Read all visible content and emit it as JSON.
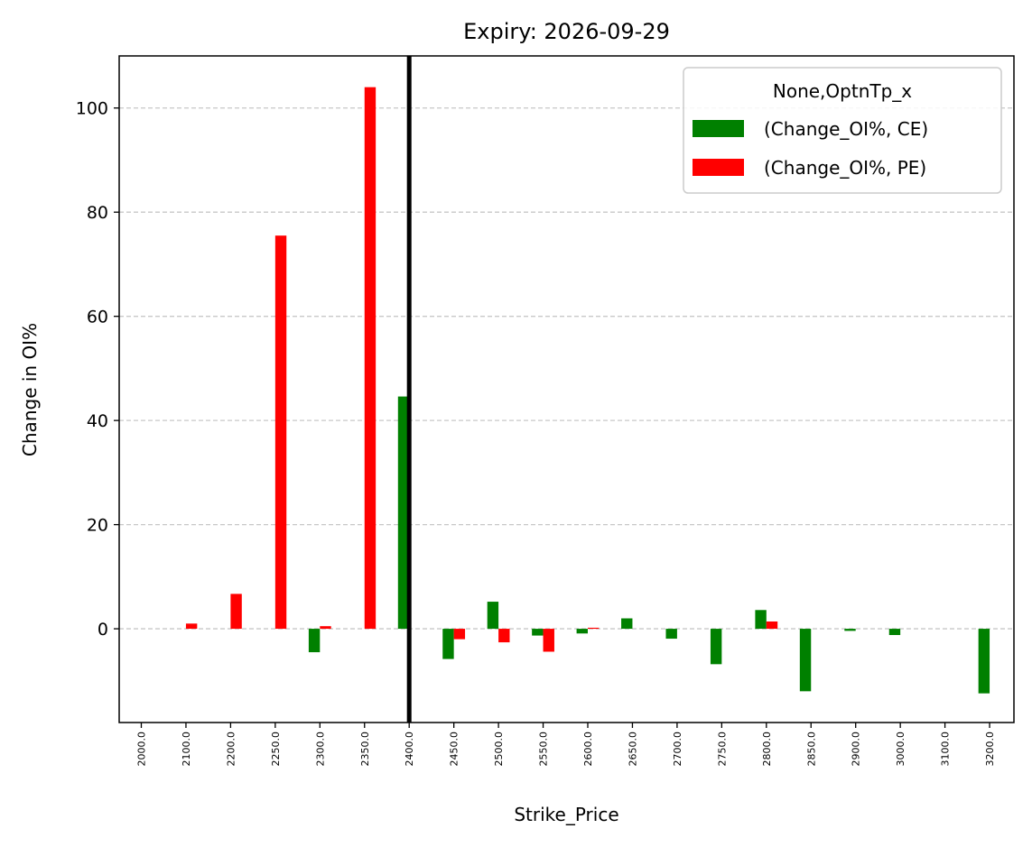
{
  "chart_data": {
    "type": "bar",
    "title": "Expiry: 2026-09-29",
    "xlabel": "Strike_Price",
    "ylabel": "Change in OI%",
    "categories": [
      "2000.0",
      "2100.0",
      "2200.0",
      "2250.0",
      "2300.0",
      "2350.0",
      "2400.0",
      "2450.0",
      "2500.0",
      "2550.0",
      "2600.0",
      "2650.0",
      "2700.0",
      "2750.0",
      "2800.0",
      "2850.0",
      "2900.0",
      "3000.0",
      "3100.0",
      "3200.0"
    ],
    "series": [
      {
        "name": "(Change_OI%, CE)",
        "color": "#008000",
        "values": [
          0,
          0,
          0,
          0,
          -4.5,
          0,
          44.6,
          -5.8,
          5.2,
          -1.3,
          -0.9,
          2.0,
          -1.9,
          -6.8,
          3.6,
          -12.0,
          -0.4,
          -1.2,
          0,
          -12.4
        ]
      },
      {
        "name": "(Change_OI%, PE)",
        "color": "#ff0000",
        "values": [
          0,
          1.0,
          6.7,
          75.5,
          0.5,
          104.0,
          0,
          -2.0,
          -2.6,
          -4.4,
          0.2,
          0,
          0,
          0,
          1.4,
          0,
          0,
          0,
          0,
          0
        ]
      }
    ],
    "yticks": [
      0,
      20,
      40,
      60,
      80,
      100
    ],
    "ylim": [
      -18,
      110
    ],
    "grid": "y dashed",
    "vline_category": "2400.0",
    "legend": {
      "title": "None,OptnTp_x",
      "position": "top-right"
    }
  }
}
